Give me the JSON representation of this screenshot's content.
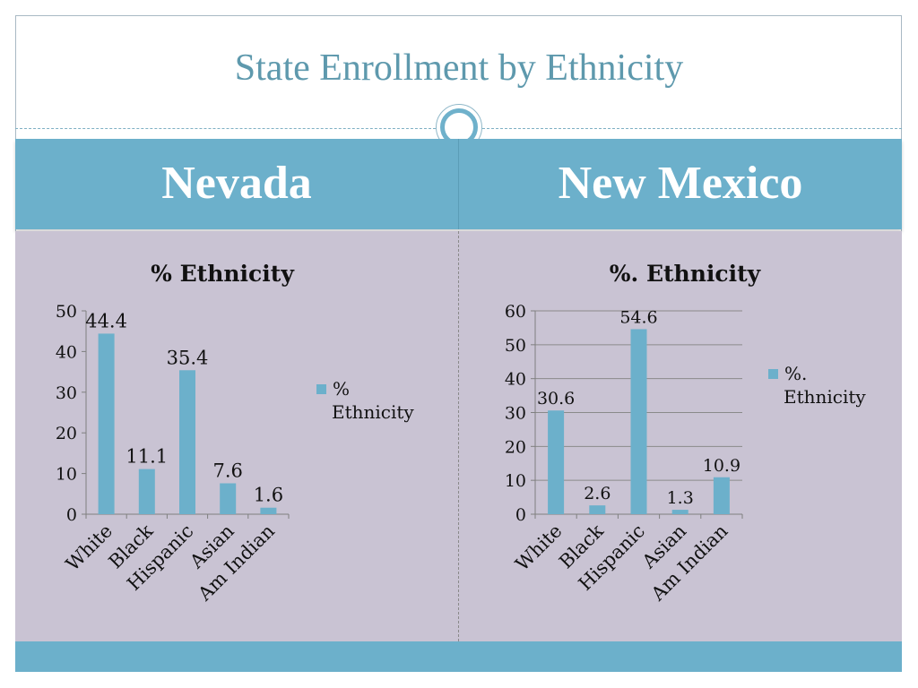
{
  "slide": {
    "title": "State Enrollment by Ethnicity",
    "left_state": "Nevada",
    "right_state": "New Mexico"
  },
  "colors": {
    "accent": "#6cb0cb",
    "title_text": "#5e99ad",
    "content_background": "#c9c3d3",
    "bar": "#6cb0cb",
    "axis": "#7f7f7f"
  },
  "chart_data": [
    {
      "type": "bar",
      "title": "% Ethnicity",
      "categories": [
        "White",
        "Black",
        "Hispanic",
        "Asian",
        "Am Indian"
      ],
      "series": [
        {
          "name": "% Ethnicity",
          "values": [
            44.4,
            11.1,
            35.4,
            7.6,
            1.6
          ]
        }
      ],
      "data_labels": [
        "44.4",
        "11.1",
        "35.4",
        "7.6",
        "1.6"
      ],
      "legend_label": "% Ethnicity",
      "xlabel": "",
      "ylabel": "",
      "ylim": [
        0,
        50
      ],
      "yticks": [
        0,
        10,
        20,
        30,
        40,
        50
      ],
      "grid": false,
      "legend": "right"
    },
    {
      "type": "bar",
      "title": "%. Ethnicity",
      "categories": [
        "White",
        "Black",
        "Hispanic",
        "Asian",
        "Am Indian"
      ],
      "series": [
        {
          "name": "%. Ethnicity",
          "values": [
            30.6,
            2.6,
            54.6,
            1.3,
            10.9
          ]
        }
      ],
      "data_labels": [
        "30.6",
        "2.6",
        "54.6",
        "1.3",
        "10.9"
      ],
      "legend_label": "%. Ethnicity",
      "xlabel": "",
      "ylabel": "",
      "ylim": [
        0,
        60
      ],
      "yticks": [
        0,
        10,
        20,
        30,
        40,
        50,
        60
      ],
      "grid": true,
      "legend": "right"
    }
  ]
}
